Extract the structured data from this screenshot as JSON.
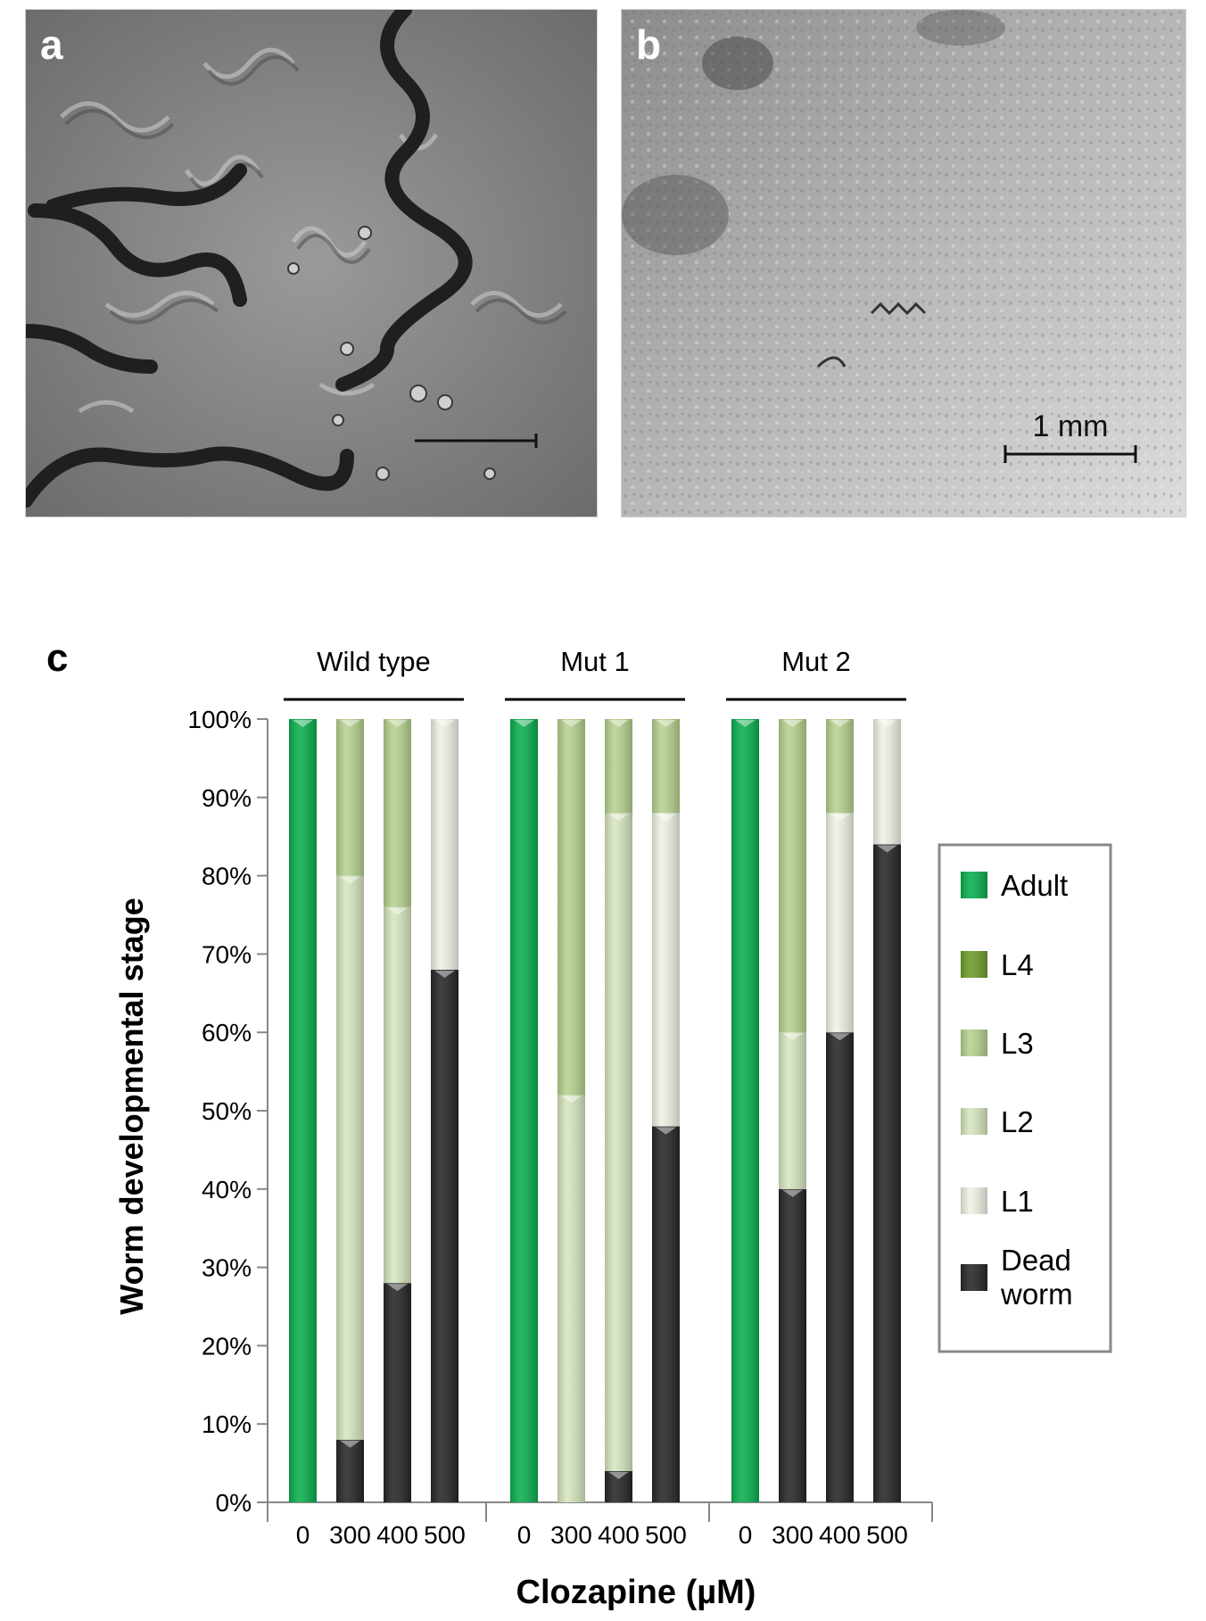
{
  "panels": {
    "a": {
      "label": "a"
    },
    "b": {
      "label": "b",
      "scale_bar": "1 mm"
    },
    "c": {
      "label": "c"
    }
  },
  "colors": {
    "Adult": "#0aae4e",
    "L4": "#6e9a2c",
    "L3": "#b6d28f",
    "L2": "#d6e6bf",
    "L1": "#eef3e5",
    "Dead worm": "#262626"
  },
  "chart_data": {
    "type": "bar",
    "stacked": true,
    "title": "",
    "xlabel": "Clozapine (µM)",
    "ylabel": "Worm developmental stage",
    "ylim": [
      0,
      100
    ],
    "y_ticks": [
      "0%",
      "10%",
      "20%",
      "30%",
      "40%",
      "50%",
      "60%",
      "70%",
      "80%",
      "90%",
      "100%"
    ],
    "groups": [
      "Wild type",
      "Mut 1",
      "Mut 2"
    ],
    "categories": [
      "0",
      "300",
      "400",
      "500",
      "0",
      "300",
      "400",
      "500",
      "0",
      "300",
      "400",
      "500"
    ],
    "series": [
      {
        "name": "Dead worm",
        "values": [
          0,
          8,
          28,
          68,
          0,
          0,
          4,
          48,
          0,
          40,
          60,
          84
        ]
      },
      {
        "name": "L1",
        "values": [
          0,
          0,
          0,
          32,
          0,
          0,
          0,
          40,
          0,
          0,
          28,
          16
        ]
      },
      {
        "name": "L2",
        "values": [
          0,
          72,
          48,
          0,
          0,
          52,
          84,
          0,
          0,
          20,
          0,
          0
        ]
      },
      {
        "name": "L3",
        "values": [
          0,
          20,
          24,
          0,
          0,
          48,
          12,
          12,
          0,
          40,
          12,
          0
        ]
      },
      {
        "name": "L4",
        "values": [
          0,
          0,
          0,
          0,
          0,
          0,
          0,
          0,
          0,
          0,
          0,
          0
        ]
      },
      {
        "name": "Adult",
        "values": [
          100,
          0,
          0,
          0,
          100,
          0,
          0,
          0,
          100,
          0,
          0,
          0
        ]
      }
    ],
    "legend_order": [
      "Adult",
      "L4",
      "L3",
      "L2",
      "L1",
      "Dead worm"
    ],
    "legend_position": "right",
    "grid": false
  }
}
